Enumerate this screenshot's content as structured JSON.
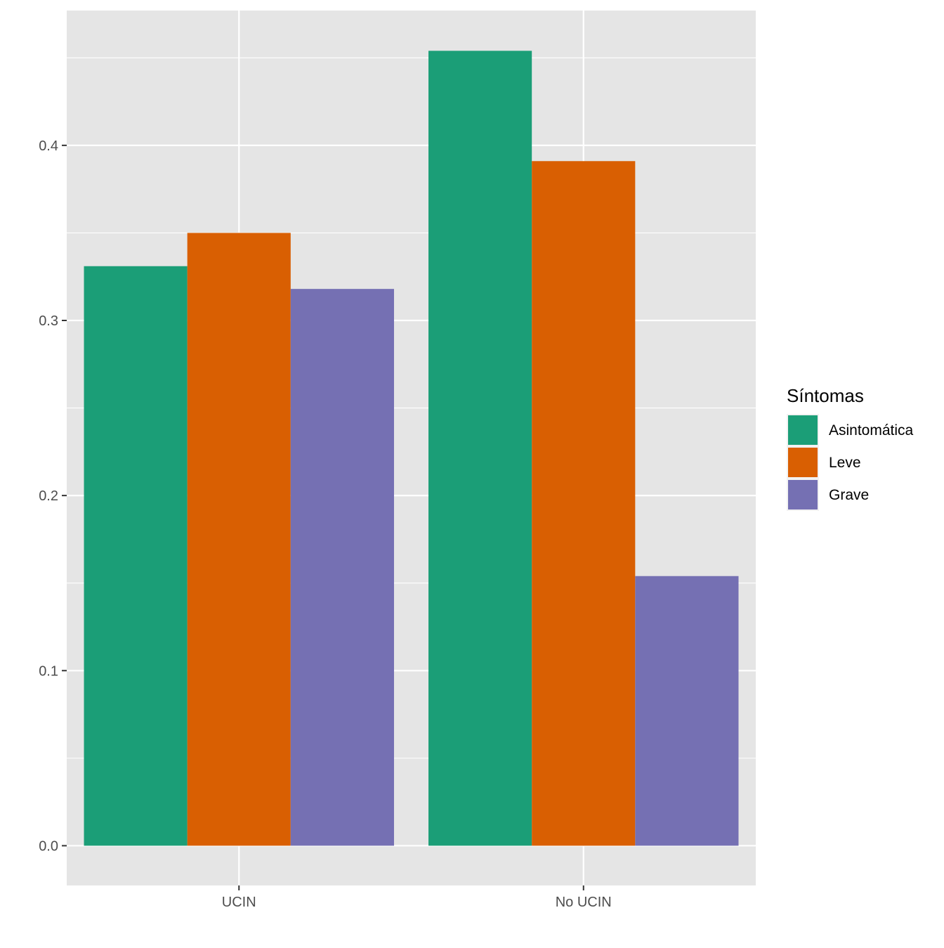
{
  "chart_data": {
    "type": "bar",
    "title": "",
    "xlabel": "",
    "ylabel": "",
    "categories": [
      "UCIN",
      "No UCIN"
    ],
    "series": [
      {
        "name": "Asintomática",
        "color": "#1B9E77",
        "values": [
          0.331,
          0.454
        ]
      },
      {
        "name": "Leve",
        "color": "#D95F02",
        "values": [
          0.35,
          0.391
        ]
      },
      {
        "name": "Grave",
        "color": "#7570B3",
        "values": [
          0.318,
          0.154
        ]
      }
    ],
    "ylim": [
      -0.0227,
      0.477
    ],
    "yticks": [
      0.0,
      0.1,
      0.2,
      0.3,
      0.4
    ],
    "ytick_labels": [
      "0.0",
      "0.1",
      "0.2",
      "0.3",
      "0.4"
    ],
    "grid": true,
    "legend": {
      "title": "Síntomas",
      "position": "right"
    },
    "panel_background": "#E5E5E5",
    "gridline_color": "#FFFFFF"
  }
}
